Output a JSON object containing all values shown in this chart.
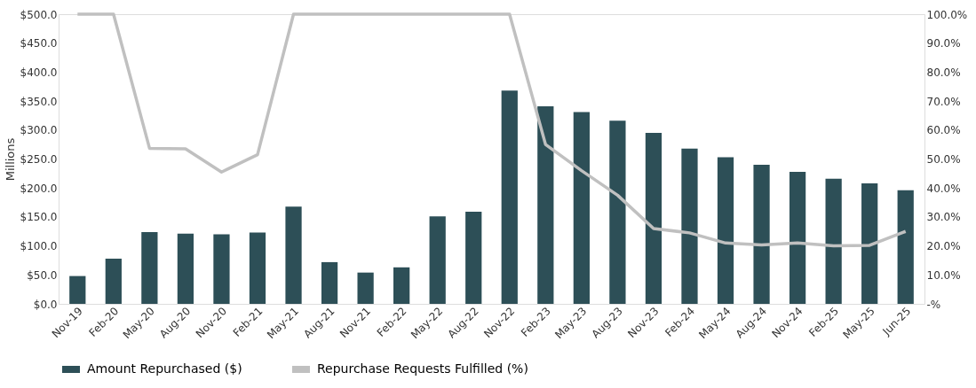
{
  "chart_data": {
    "type": "bar",
    "ylabel": "Millions",
    "categories": [
      "Nov-19",
      "Feb-20",
      "May-20",
      "Aug-20",
      "Nov-20",
      "Feb-21",
      "May-21",
      "Aug-21",
      "Nov-21",
      "Feb-22",
      "May-22",
      "Aug-22",
      "Nov-22",
      "Feb-23",
      "May-23",
      "Aug-23",
      "Nov-23",
      "Feb-24",
      "May-24",
      "Aug-24",
      "Nov-24",
      "Feb-25",
      "May-25",
      "Jun-25"
    ],
    "series": [
      {
        "name": "Amount Repurchased ($)",
        "axis": "y",
        "color": "#2d4f57",
        "values": [
          48,
          78,
          124,
          121,
          120,
          123,
          168,
          72,
          54,
          63,
          151,
          159,
          368,
          341,
          331,
          316,
          295,
          268,
          253,
          240,
          228,
          216,
          208,
          196
        ]
      },
      {
        "name": "Repurchase Requests Fulfilled (%)",
        "type": "line",
        "axis": "y2",
        "color": "#c0c0c0",
        "values": [
          100,
          100,
          53.7,
          53.5,
          45.5,
          51.5,
          100,
          100,
          100,
          100,
          100,
          100,
          100,
          55,
          46,
          37.5,
          26,
          24.5,
          21,
          20.3,
          21,
          20,
          20.2,
          25
        ]
      }
    ],
    "ylim": [
      0,
      500
    ],
    "yticks": [
      {
        "value": 0,
        "label": "$0.0"
      },
      {
        "value": 50,
        "label": "$50.0"
      },
      {
        "value": 100,
        "label": "$100.0"
      },
      {
        "value": 150,
        "label": "$150.0"
      },
      {
        "value": 200,
        "label": "$200.0"
      },
      {
        "value": 250,
        "label": "$250.0"
      },
      {
        "value": 300,
        "label": "$300.0"
      },
      {
        "value": 350,
        "label": "$350.0"
      },
      {
        "value": 400,
        "label": "$400.0"
      },
      {
        "value": 450,
        "label": "$450.0"
      },
      {
        "value": 500,
        "label": "$500.0"
      }
    ],
    "y2lim": [
      0,
      100
    ],
    "y2ticks": [
      {
        "value": 0,
        "label": "-%"
      },
      {
        "value": 10,
        "label": "10.0%"
      },
      {
        "value": 20,
        "label": "20.0%"
      },
      {
        "value": 30,
        "label": "30.0%"
      },
      {
        "value": 40,
        "label": "40.0%"
      },
      {
        "value": 50,
        "label": "50.0%"
      },
      {
        "value": 60,
        "label": "60.0%"
      },
      {
        "value": 70,
        "label": "70.0%"
      },
      {
        "value": 80,
        "label": "80.0%"
      },
      {
        "value": 90,
        "label": "90.0%"
      },
      {
        "value": 100,
        "label": "100.0%"
      }
    ],
    "grid": false,
    "legend": "bottom",
    "marker": "none",
    "line_style": "solid"
  }
}
